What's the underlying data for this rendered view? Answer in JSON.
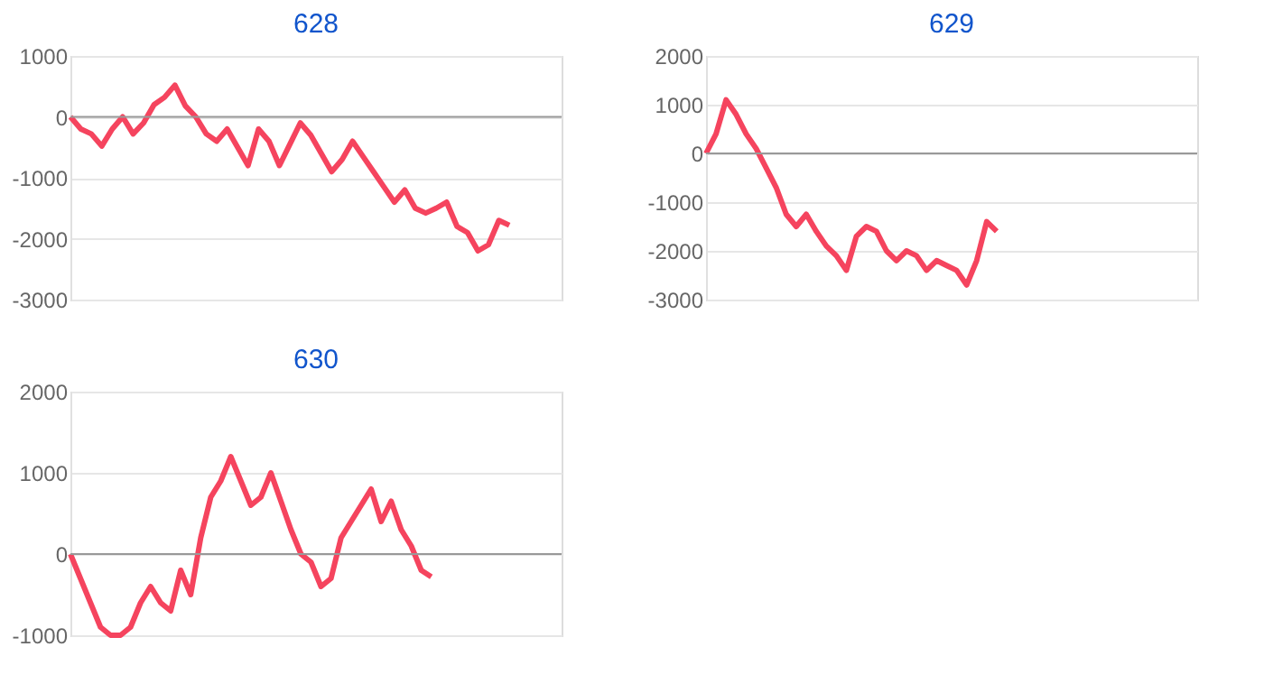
{
  "chart_data": [
    {
      "type": "line",
      "title": "628",
      "categories": [
        null,
        null,
        null,
        null,
        null,
        null,
        null,
        null,
        null,
        null,
        null,
        null,
        null,
        null,
        null,
        null,
        null,
        null,
        null,
        null,
        null,
        null,
        null,
        null,
        null,
        null,
        null,
        null,
        null,
        null,
        null,
        null,
        null,
        null,
        null,
        null,
        null,
        null,
        null,
        null,
        null,
        null,
        null,
        null,
        null,
        null,
        null,
        null
      ],
      "series": [
        {
          "color": "#f5445e",
          "values": [
            0,
            -200,
            -280,
            -480,
            -200,
            0,
            -280,
            -100,
            200,
            320,
            520,
            180,
            0,
            -280,
            -400,
            -200,
            -500,
            -800,
            -200,
            -400,
            -800,
            -450,
            -100,
            -300,
            -600,
            -900,
            -700,
            -400,
            -650,
            -900,
            -1150,
            -1400,
            -1200,
            -1500,
            -1580,
            -1500,
            -1400,
            -1800,
            -1900,
            -2200,
            -2100,
            -1700,
            -1780,
            null,
            null,
            null,
            null,
            null
          ]
        }
      ],
      "ylim": [
        -3000,
        1000
      ],
      "yticks": [
        -3000,
        -2000,
        -1000,
        0,
        1000
      ],
      "grid": "y",
      "tick_labels": "y",
      "ref_lines": [
        {
          "axis": "y",
          "value": 0,
          "color": "#999999"
        }
      ]
    },
    {
      "type": "line",
      "title": "629",
      "categories": [
        null,
        null,
        null,
        null,
        null,
        null,
        null,
        null,
        null,
        null,
        null,
        null,
        null,
        null,
        null,
        null,
        null,
        null,
        null,
        null,
        null,
        null,
        null,
        null,
        null,
        null,
        null,
        null,
        null,
        null,
        null,
        null,
        null,
        null,
        null,
        null,
        null,
        null,
        null,
        null,
        null,
        null,
        null,
        null,
        null,
        null,
        null,
        null,
        null,
        null
      ],
      "series": [
        {
          "color": "#f5445e",
          "values": [
            0,
            400,
            1100,
            800,
            400,
            100,
            -300,
            -700,
            -1250,
            -1500,
            -1250,
            -1600,
            -1900,
            -2100,
            -2400,
            -1700,
            -1500,
            -1600,
            -2000,
            -2200,
            -2000,
            -2100,
            -2400,
            -2200,
            -2300,
            -2400,
            -2700,
            -2200,
            -1400,
            -1600,
            null,
            null,
            null,
            null,
            null,
            null,
            null,
            null,
            null,
            null,
            null,
            null,
            null,
            null,
            null,
            null,
            null,
            null,
            null,
            null
          ]
        }
      ],
      "ylim": [
        -3000,
        2000
      ],
      "yticks": [
        -3000,
        -2000,
        -1000,
        0,
        1000,
        2000
      ],
      "grid": "y",
      "tick_labels": "y",
      "ref_lines": [
        {
          "axis": "y",
          "value": 0,
          "color": "#999999"
        }
      ]
    },
    {
      "type": "line",
      "title": "630",
      "categories": [
        null,
        null,
        null,
        null,
        null,
        null,
        null,
        null,
        null,
        null,
        null,
        null,
        null,
        null,
        null,
        null,
        null,
        null,
        null,
        null,
        null,
        null,
        null,
        null,
        null,
        null,
        null,
        null,
        null,
        null,
        null,
        null,
        null,
        null,
        null,
        null,
        null,
        null,
        null,
        null,
        null,
        null,
        null,
        null,
        null,
        null,
        null,
        null,
        null,
        null
      ],
      "series": [
        {
          "color": "#f5445e",
          "values": [
            0,
            -300,
            -600,
            -900,
            -1000,
            -1000,
            -900,
            -600,
            -400,
            -600,
            -700,
            -200,
            -500,
            200,
            700,
            900,
            1200,
            900,
            600,
            700,
            1000,
            650,
            300,
            0,
            -100,
            -400,
            -300,
            200,
            400,
            600,
            800,
            400,
            650,
            300,
            100,
            -200,
            -280,
            null,
            null,
            null,
            null,
            null,
            null,
            null,
            null,
            null,
            null,
            null,
            null,
            null
          ]
        }
      ],
      "ylim": [
        -1000,
        2000
      ],
      "yticks": [
        -1000,
        0,
        1000,
        2000
      ],
      "grid": "y",
      "tick_labels": "y",
      "ref_lines": [
        {
          "axis": "y",
          "value": 0,
          "color": "#999999"
        }
      ]
    }
  ]
}
